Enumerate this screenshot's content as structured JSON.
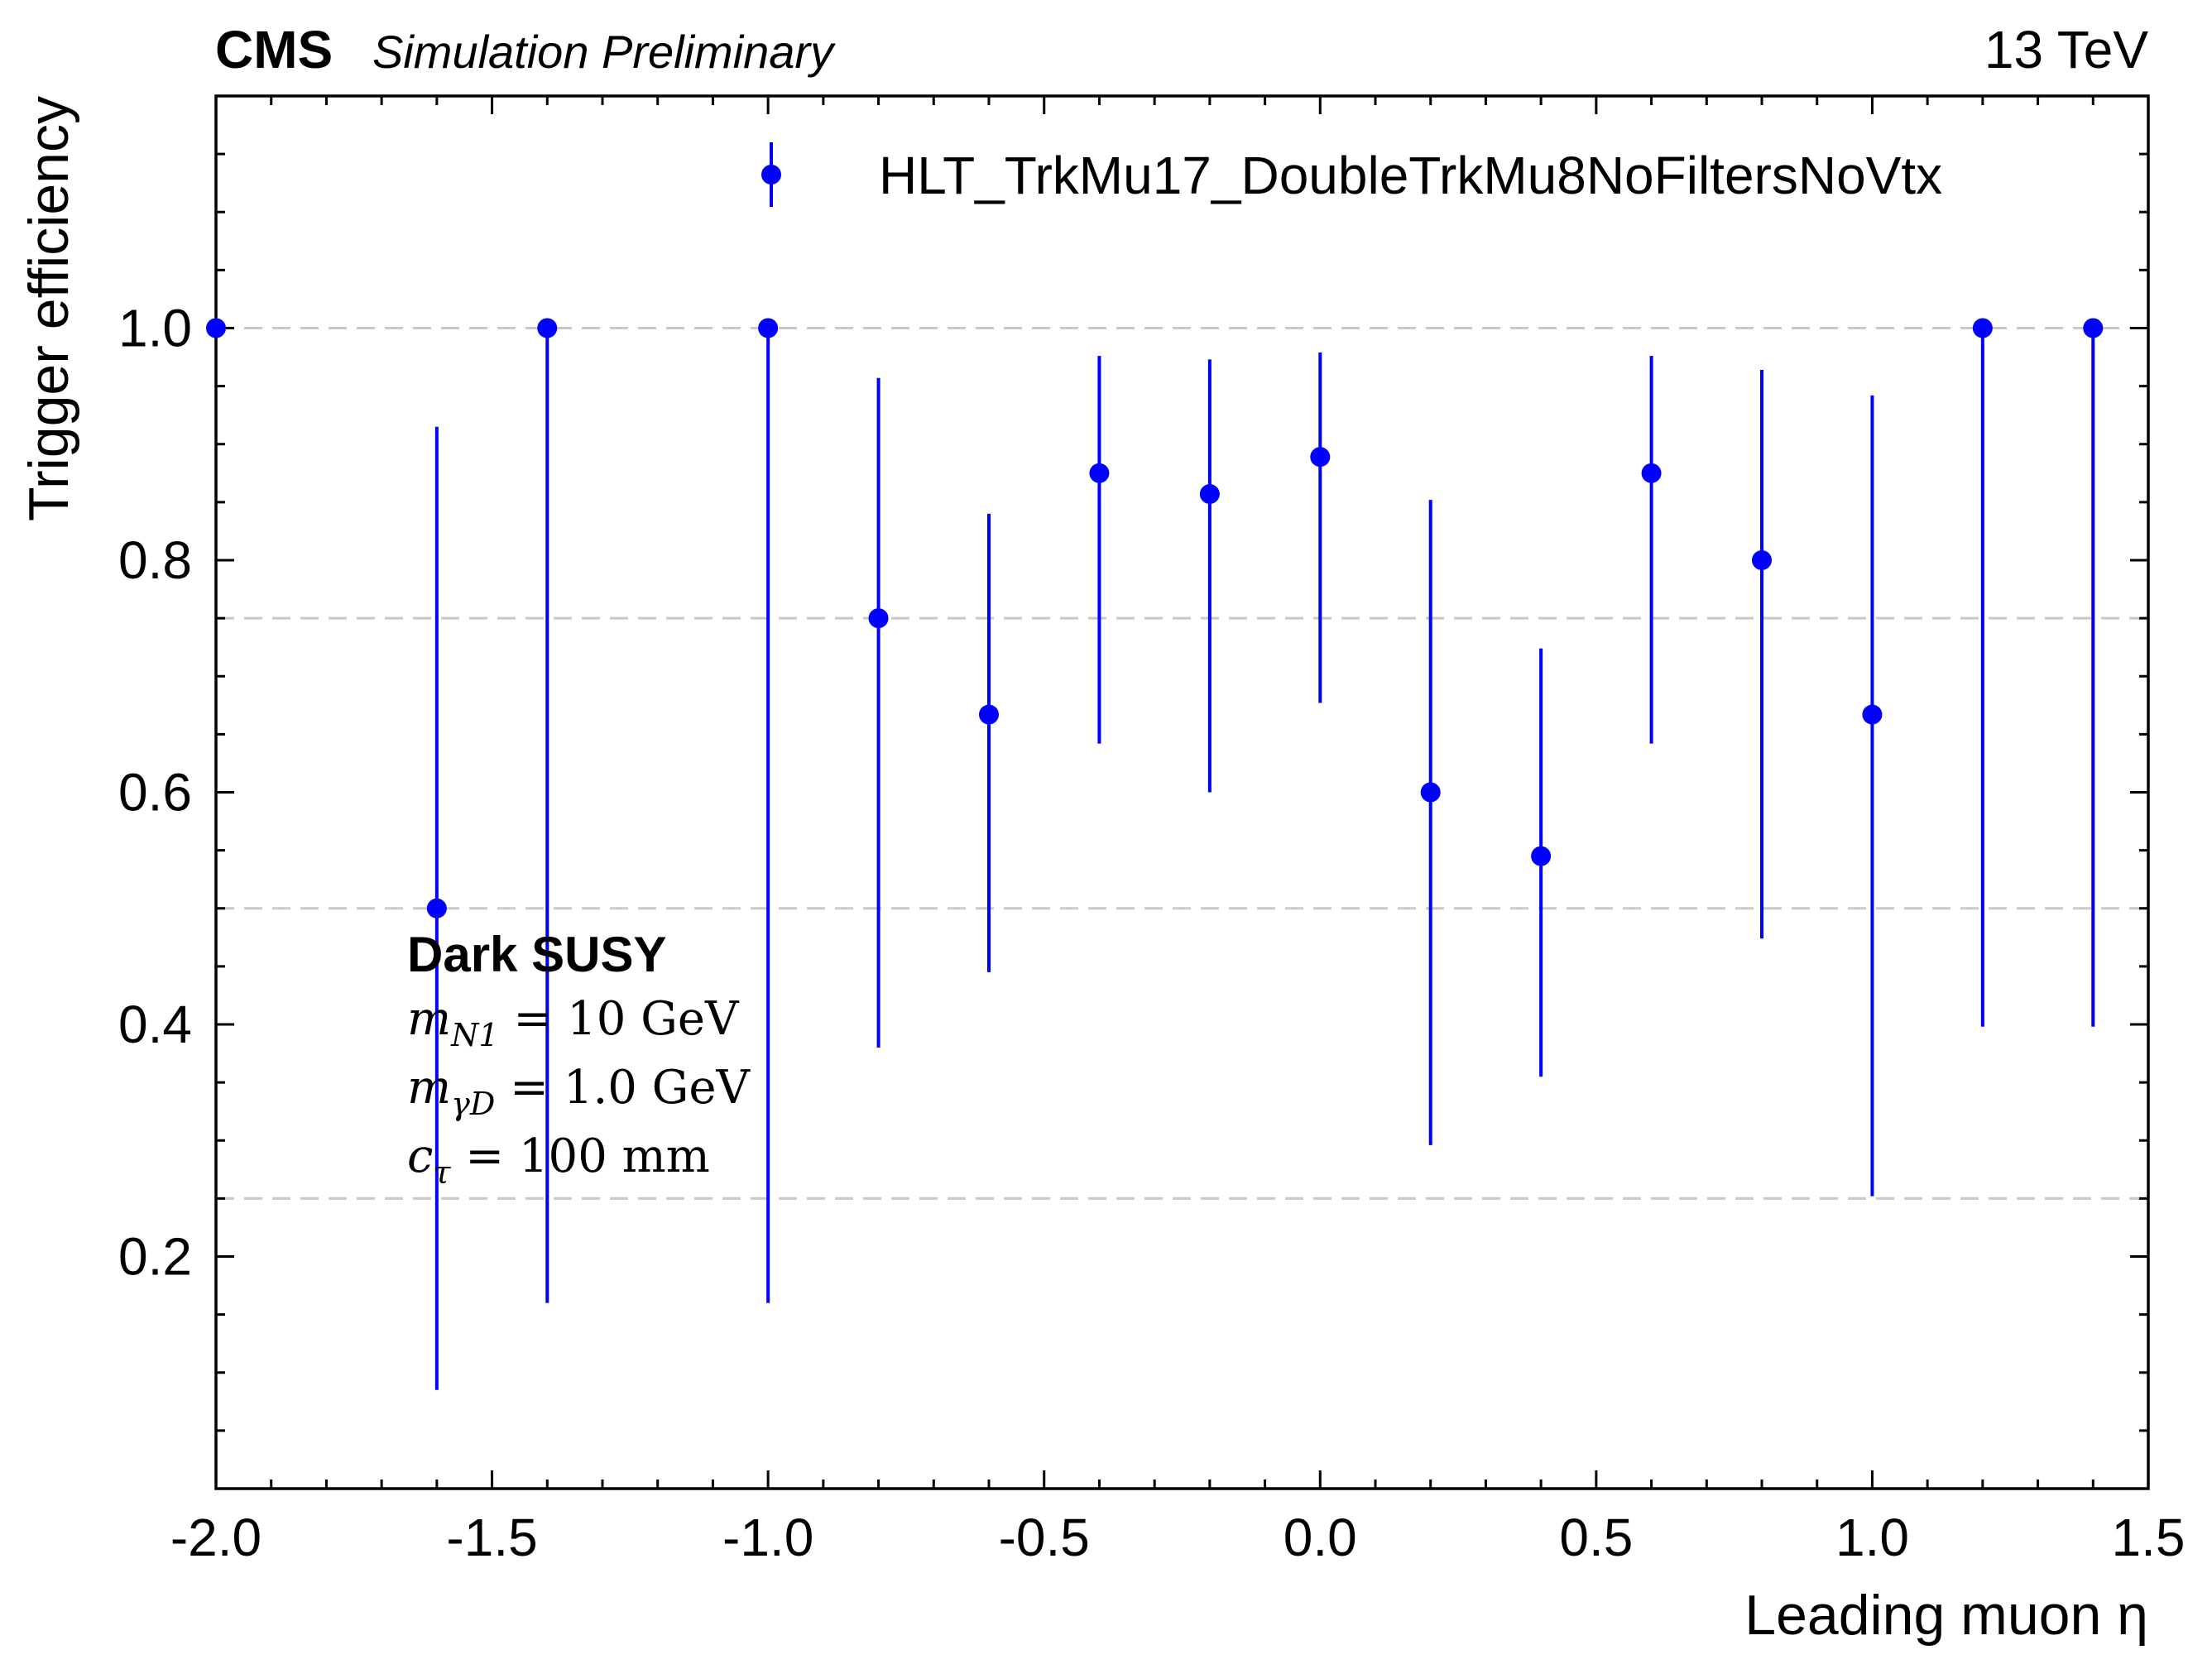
{
  "header": {
    "experiment": "CMS",
    "status": "Simulation Preliminary",
    "energy": "13 TeV"
  },
  "annotation": {
    "title": "Dark SUSY",
    "lines": [
      {
        "base": "m",
        "sub": "N1",
        "rest": " = 10 GeV"
      },
      {
        "base": "m",
        "sub": "γD",
        "rest": " = 1.0 GeV"
      },
      {
        "base": "c",
        "sub": "τ",
        "rest": " = 100 mm"
      }
    ]
  },
  "chart_data": {
    "type": "scatter",
    "title": "",
    "xlabel": "Leading muon η",
    "ylabel": "Trigger efficiency",
    "xlim": [
      -2.0,
      1.5
    ],
    "ylim": [
      0.0,
      1.2
    ],
    "x_ticks": [
      -2.0,
      -1.5,
      -1.0,
      -0.5,
      0.0,
      0.5,
      1.0,
      1.5
    ],
    "x_tick_labels": [
      "-2.0",
      "-1.5",
      "-1.0",
      "-0.5",
      "0.0",
      "0.5",
      "1.0",
      "1.5"
    ],
    "y_ticks": [
      0.2,
      0.4,
      0.6,
      0.8,
      1.0
    ],
    "y_tick_labels": [
      "0.2",
      "0.4",
      "0.6",
      "0.8",
      "1.0"
    ],
    "grid": {
      "axis": "y",
      "style": "dashed",
      "values": [
        0.25,
        0.5,
        0.75,
        1.0
      ]
    },
    "legend": {
      "placement": "top-right"
    },
    "series": [
      {
        "name": "HLT_TrkMu17_DoubleTrkMu8NoFiltersNoVtx",
        "color": "#0000ff",
        "points": [
          {
            "x": -2.0,
            "y": 1.0,
            "ylo": 1.0,
            "yhi": 1.0
          },
          {
            "x": -1.6,
            "y": 0.5,
            "ylo": 0.085,
            "yhi": 0.915
          },
          {
            "x": -1.4,
            "y": 1.0,
            "ylo": 0.16,
            "yhi": 1.0
          },
          {
            "x": -1.0,
            "y": 1.0,
            "ylo": 0.16,
            "yhi": 1.0
          },
          {
            "x": -0.8,
            "y": 0.75,
            "ylo": 0.38,
            "yhi": 0.957
          },
          {
            "x": -0.6,
            "y": 0.667,
            "ylo": 0.445,
            "yhi": 0.84
          },
          {
            "x": -0.4,
            "y": 0.875,
            "ylo": 0.642,
            "yhi": 0.976
          },
          {
            "x": -0.2,
            "y": 0.857,
            "ylo": 0.6,
            "yhi": 0.973
          },
          {
            "x": 0.0,
            "y": 0.889,
            "ylo": 0.677,
            "yhi": 0.979
          },
          {
            "x": 0.2,
            "y": 0.6,
            "ylo": 0.296,
            "yhi": 0.852
          },
          {
            "x": 0.4,
            "y": 0.545,
            "ylo": 0.355,
            "yhi": 0.724
          },
          {
            "x": 0.6,
            "y": 0.875,
            "ylo": 0.642,
            "yhi": 0.976
          },
          {
            "x": 0.8,
            "y": 0.8,
            "ylo": 0.474,
            "yhi": 0.964
          },
          {
            "x": 1.0,
            "y": 0.667,
            "ylo": 0.252,
            "yhi": 0.942
          },
          {
            "x": 1.2,
            "y": 1.0,
            "ylo": 0.398,
            "yhi": 1.0
          },
          {
            "x": 1.4,
            "y": 1.0,
            "ylo": 0.398,
            "yhi": 1.0
          }
        ]
      }
    ]
  }
}
